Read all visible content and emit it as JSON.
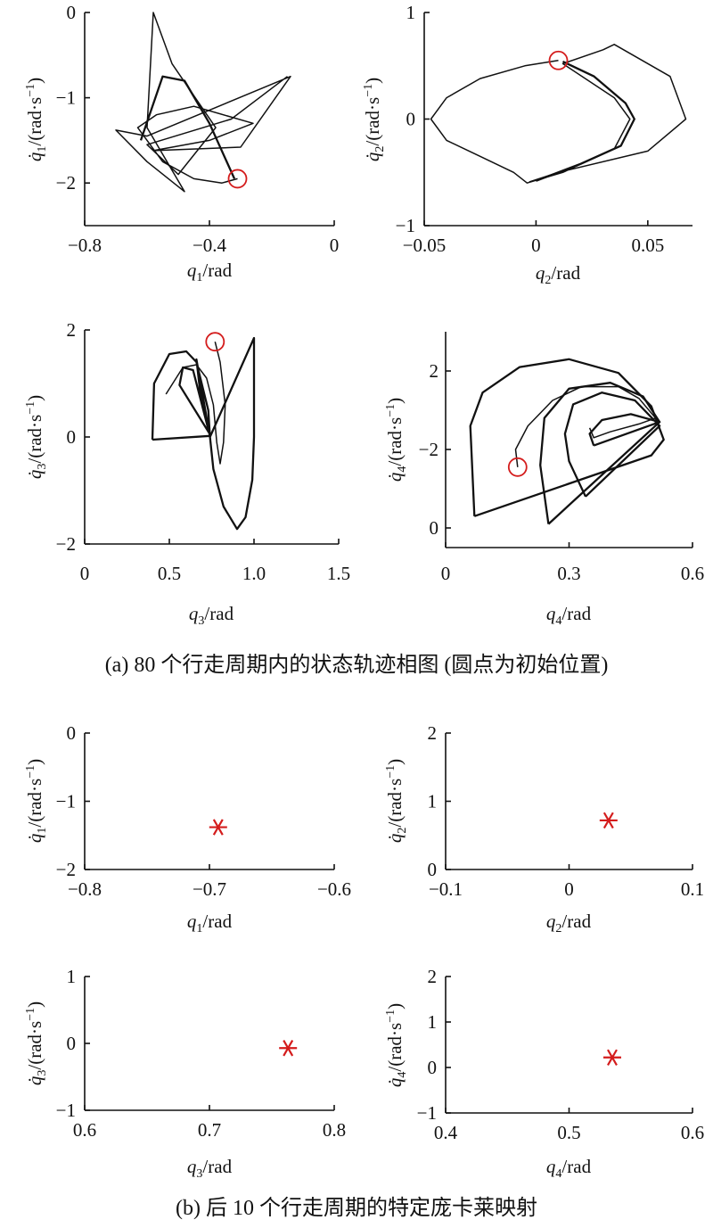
{
  "captions": {
    "a": "(a) 80 个行走周期内的状态轨迹相图 (圆点为初始位置)",
    "b": "(b) 后 10 个行走周期的特定庞卡莱映射"
  },
  "colors": {
    "axis": "#111111",
    "trajectory": "#111111",
    "marker": "#d41c1c"
  },
  "chart_data": [
    {
      "type": "line",
      "panel": "a1",
      "joint": 1,
      "xlabel": "q1/rad",
      "ylabel": "q̇1/(rad·s⁻¹)",
      "xlim": [
        -0.8,
        0
      ],
      "ylim": [
        -2.5,
        0
      ],
      "xticks": [
        "−0.8",
        "−0.4",
        "0"
      ],
      "yticks": [
        "−2",
        "−1",
        "0"
      ],
      "xtick_values": [
        -0.8,
        -0.4,
        0
      ],
      "ytick_values": [
        -2,
        -1,
        0
      ],
      "start_marker": {
        "x": -0.31,
        "y": -1.95
      },
      "series": [
        {
          "values": [
            [
              -0.31,
              -1.95
            ],
            [
              -0.36,
              -2.0
            ],
            [
              -0.45,
              -1.95
            ],
            [
              -0.55,
              -1.75
            ],
            [
              -0.63,
              -1.35
            ],
            [
              -0.57,
              -1.2
            ],
            [
              -0.45,
              -1.1
            ],
            [
              -0.26,
              -1.3
            ],
            [
              -0.4,
              -1.5
            ],
            [
              -0.58,
              -1.62
            ],
            [
              -0.3,
              -1.58
            ],
            [
              -0.14,
              -0.75
            ],
            [
              -0.6,
              -1.45
            ],
            [
              -0.7,
              -1.38
            ],
            [
              -0.6,
              -1.75
            ],
            [
              -0.48,
              -2.1
            ],
            [
              -0.6,
              -1.35
            ],
            [
              -0.58,
              0
            ],
            [
              -0.52,
              -0.6
            ],
            [
              -0.38,
              -1.35
            ],
            [
              -0.5,
              -1.9
            ],
            [
              -0.6,
              -1.55
            ],
            [
              -0.33,
              -1.25
            ],
            [
              -0.15,
              -0.75
            ]
          ]
        },
        {
          "values": [
            [
              -0.62,
              -1.5
            ],
            [
              -0.55,
              -0.75
            ],
            [
              -0.48,
              -0.8
            ],
            [
              -0.4,
              -1.3
            ],
            [
              -0.32,
              -1.95
            ]
          ]
        }
      ]
    },
    {
      "type": "line",
      "panel": "a2",
      "joint": 2,
      "xlabel": "q2/rad",
      "ylabel": "q̇2/(rad·s⁻¹)",
      "xlim": [
        -0.05,
        0.07
      ],
      "ylim": [
        -1,
        1
      ],
      "xticks": [
        "−0.05",
        "0",
        "0.05"
      ],
      "yticks": [
        "−1",
        "0",
        "1"
      ],
      "xtick_values": [
        -0.05,
        0,
        0.05
      ],
      "ytick_values": [
        -1,
        0,
        1
      ],
      "start_marker": {
        "x": 0.01,
        "y": 0.55
      },
      "series": [
        {
          "values": [
            [
              0.01,
              0.55
            ],
            [
              -0.005,
              0.5
            ],
            [
              -0.025,
              0.38
            ],
            [
              -0.04,
              0.2
            ],
            [
              -0.047,
              0.0
            ],
            [
              -0.04,
              -0.2
            ],
            [
              -0.025,
              -0.35
            ],
            [
              -0.01,
              -0.5
            ],
            [
              -0.004,
              -0.6
            ],
            [
              0.012,
              -0.5
            ],
            [
              0.035,
              -0.28
            ],
            [
              0.042,
              0.0
            ],
            [
              0.035,
              0.2
            ],
            [
              0.012,
              0.52
            ],
            [
              0.03,
              0.65
            ],
            [
              0.035,
              0.7
            ],
            [
              0.06,
              0.4
            ],
            [
              0.067,
              0.0
            ],
            [
              0.05,
              -0.3
            ],
            [
              0.01,
              -0.5
            ],
            [
              -0.003,
              -0.59
            ]
          ]
        },
        {
          "values": [
            [
              0.012,
              0.54
            ],
            [
              0.026,
              0.4
            ],
            [
              0.04,
              0.15
            ],
            [
              0.044,
              0.0
            ],
            [
              0.038,
              -0.25
            ],
            [
              0.02,
              -0.42
            ],
            [
              0.0,
              -0.58
            ]
          ]
        }
      ]
    },
    {
      "type": "line",
      "panel": "a3",
      "joint": 3,
      "xlabel": "q3/rad",
      "ylabel": "q̇3/(rad·s⁻¹)",
      "xlim": [
        0,
        1.5
      ],
      "ylim": [
        -2,
        2
      ],
      "xticks": [
        "0",
        "0.5",
        "1.0",
        "1.5"
      ],
      "yticks": [
        "−2",
        "0",
        "2"
      ],
      "xtick_values": [
        0,
        0.5,
        1.0,
        1.5
      ],
      "ytick_values": [
        -2,
        0,
        2
      ],
      "start_marker": {
        "x": 0.77,
        "y": 1.78
      },
      "series": [
        {
          "values": [
            [
              0.77,
              1.78
            ],
            [
              0.8,
              1.4
            ],
            [
              0.83,
              0.6
            ],
            [
              0.82,
              -0.1
            ],
            [
              0.8,
              -0.5
            ],
            [
              0.78,
              -0.1
            ],
            [
              0.76,
              0.6
            ],
            [
              0.72,
              1.1
            ],
            [
              0.66,
              1.35
            ],
            [
              0.58,
              1.3
            ],
            [
              0.52,
              1.0
            ],
            [
              0.48,
              0.8
            ]
          ]
        },
        {
          "values": [
            [
              0.4,
              -0.05
            ],
            [
              0.41,
              1.0
            ],
            [
              0.5,
              1.55
            ],
            [
              0.6,
              1.6
            ],
            [
              0.66,
              1.4
            ],
            [
              0.73,
              0.5
            ],
            [
              0.74,
              0.0
            ],
            [
              0.76,
              -0.6
            ],
            [
              0.82,
              -1.3
            ],
            [
              0.9,
              -1.72
            ],
            [
              0.95,
              -1.5
            ],
            [
              0.99,
              -0.8
            ],
            [
              1.0,
              0.0
            ],
            [
              1.0,
              1.85
            ],
            [
              0.74,
              0.0
            ],
            [
              0.66,
              1.45
            ],
            [
              0.68,
              0.9
            ],
            [
              0.74,
              0.05
            ],
            [
              0.56,
              0.97
            ],
            [
              0.58,
              1.3
            ],
            [
              0.64,
              1.25
            ],
            [
              0.74,
              0.02
            ],
            [
              0.4,
              -0.05
            ]
          ]
        }
      ]
    },
    {
      "type": "line",
      "panel": "a4",
      "joint": 4,
      "xlabel": "q4/rad",
      "ylabel": "q̇4/(rad·s⁻¹)",
      "xlim": [
        0,
        0.6
      ],
      "ylim": [
        -2.5,
        3
      ],
      "xticks": [
        "0",
        "0.3",
        "0.6"
      ],
      "yticks": [
        "−2",
        "0",
        "2"
      ],
      "xtick_values": [
        0,
        0.3,
        0.6
      ],
      "ytick_values": [
        0,
        -2,
        2
      ],
      "start_marker": {
        "x": 0.175,
        "y": -0.45
      },
      "series": [
        {
          "values": [
            [
              0.175,
              -0.45
            ],
            [
              0.17,
              0.0
            ],
            [
              0.2,
              0.6
            ],
            [
              0.26,
              1.25
            ],
            [
              0.33,
              1.6
            ],
            [
              0.42,
              1.6
            ],
            [
              0.47,
              1.3
            ],
            [
              0.51,
              0.8
            ],
            [
              0.47,
              0.65
            ],
            [
              0.4,
              0.45
            ],
            [
              0.36,
              0.3
            ],
            [
              0.35,
              0.55
            ]
          ]
        },
        {
          "values": [
            [
              0.07,
              -1.7
            ],
            [
              0.5,
              -0.15
            ],
            [
              0.53,
              0.25
            ],
            [
              0.5,
              1.1
            ],
            [
              0.42,
              1.95
            ],
            [
              0.3,
              2.3
            ],
            [
              0.18,
              2.1
            ],
            [
              0.09,
              1.45
            ],
            [
              0.06,
              0.6
            ],
            [
              0.07,
              -1.7
            ]
          ]
        },
        {
          "values": [
            [
              0.25,
              -1.9
            ],
            [
              0.52,
              0.7
            ],
            [
              0.48,
              1.35
            ],
            [
              0.4,
              1.7
            ],
            [
              0.3,
              1.55
            ],
            [
              0.24,
              0.8
            ],
            [
              0.23,
              -0.4
            ],
            [
              0.25,
              -1.9
            ]
          ]
        },
        {
          "values": [
            [
              0.34,
              -1.2
            ],
            [
              0.52,
              0.6
            ],
            [
              0.46,
              1.25
            ],
            [
              0.38,
              1.45
            ],
            [
              0.31,
              1.15
            ],
            [
              0.29,
              0.4
            ],
            [
              0.3,
              -0.3
            ],
            [
              0.34,
              -1.2
            ]
          ]
        },
        {
          "values": [
            [
              0.36,
              0.1
            ],
            [
              0.52,
              0.7
            ],
            [
              0.45,
              0.9
            ],
            [
              0.38,
              0.75
            ],
            [
              0.35,
              0.4
            ],
            [
              0.36,
              0.1
            ]
          ]
        }
      ]
    },
    {
      "type": "scatter",
      "panel": "b1",
      "joint": 1,
      "xlabel": "q1/rad",
      "ylabel": "q̇1/(rad·s⁻¹)",
      "xlim": [
        -0.8,
        -0.6
      ],
      "ylim": [
        -2,
        0
      ],
      "xticks": [
        "−0.8",
        "−0.7",
        "−0.6"
      ],
      "yticks": [
        "−2",
        "−1",
        "0"
      ],
      "xtick_values": [
        -0.8,
        -0.7,
        -0.6
      ],
      "ytick_values": [
        -2,
        -1,
        0
      ],
      "points": [
        {
          "x": -0.693,
          "y": -1.38
        }
      ]
    },
    {
      "type": "scatter",
      "panel": "b2",
      "joint": 2,
      "xlabel": "q2/rad",
      "ylabel": "q̇2/(rad·s⁻¹)",
      "xlim": [
        -0.1,
        0.1
      ],
      "ylim": [
        0,
        2
      ],
      "xticks": [
        "−0.1",
        "0",
        "0.1"
      ],
      "yticks": [
        "0",
        "1",
        "2"
      ],
      "xtick_values": [
        -0.1,
        0,
        0.1
      ],
      "ytick_values": [
        0,
        1,
        2
      ],
      "points": [
        {
          "x": 0.032,
          "y": 0.72
        }
      ]
    },
    {
      "type": "scatter",
      "panel": "b3",
      "joint": 3,
      "xlabel": "q3/rad",
      "ylabel": "q̇3/(rad·s⁻¹)",
      "xlim": [
        0.6,
        0.8
      ],
      "ylim": [
        -1,
        1
      ],
      "xticks": [
        "0.6",
        "0.7",
        "0.8"
      ],
      "yticks": [
        "−1",
        "0",
        "1"
      ],
      "xtick_values": [
        0.6,
        0.7,
        0.8
      ],
      "ytick_values": [
        -1,
        0,
        1
      ],
      "points": [
        {
          "x": 0.763,
          "y": -0.07
        }
      ]
    },
    {
      "type": "scatter",
      "panel": "b4",
      "joint": 4,
      "xlabel": "q4/rad",
      "ylabel": "q̇4/(rad·s⁻¹)",
      "xlim": [
        0.4,
        0.6
      ],
      "ylim": [
        -1,
        2
      ],
      "xticks": [
        "0.4",
        "0.5",
        "0.6"
      ],
      "yticks": [
        "−1",
        "0",
        "1",
        "2"
      ],
      "xtick_values": [
        0.4,
        0.5,
        0.6
      ],
      "ytick_values": [
        -1,
        0,
        1,
        2
      ],
      "points": [
        {
          "x": 0.535,
          "y": 0.22
        }
      ]
    }
  ]
}
